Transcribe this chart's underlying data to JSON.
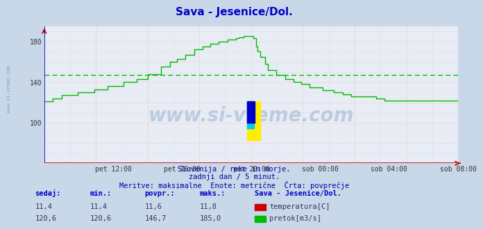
{
  "title": "Sava - Jesenice/Dol.",
  "title_color": "#0000cc",
  "bg_color": "#c8d8e8",
  "plot_bg_color": "#e8ecf4",
  "grid_color_major": "#ffbbbb",
  "grid_color_minor": "#ccccdd",
  "flow_color": "#00bb00",
  "temp_color": "#cc0000",
  "avg_line_color": "#00bb00",
  "avg_line_value": 146.7,
  "y_min": 60,
  "y_max": 195,
  "y_ticks": [
    100,
    140,
    180
  ],
  "x_labels": [
    "pet 12:00",
    "pet 16:00",
    "pet 20:00",
    "sob 00:00",
    "sob 04:00",
    "sob 08:00"
  ],
  "subtitle1": "Slovenija / reke in morje.",
  "subtitle2": "zadnji dan / 5 minut.",
  "subtitle3": "Meritve: maksimalne  Enote: metrične  Črta: povprečje",
  "subtitle_color": "#0000aa",
  "label_sedaj": "sedaj:",
  "label_min": "min.:",
  "label_povpr": "povpr.:",
  "label_maks": "maks.:",
  "label_station": "Sava - Jesenice/Dol.",
  "temp_sedaj": "11,4",
  "temp_min": "11,4",
  "temp_povpr": "11,6",
  "temp_maks": "11,8",
  "flow_sedaj": "120,6",
  "flow_min": "120,6",
  "flow_povpr": "146,7",
  "flow_maks": "185,0",
  "watermark": "www.si-vreme.com",
  "watermark_color": "#5577aa",
  "left_label": "www.si-vreme.com",
  "left_label_color": "#6688aa"
}
